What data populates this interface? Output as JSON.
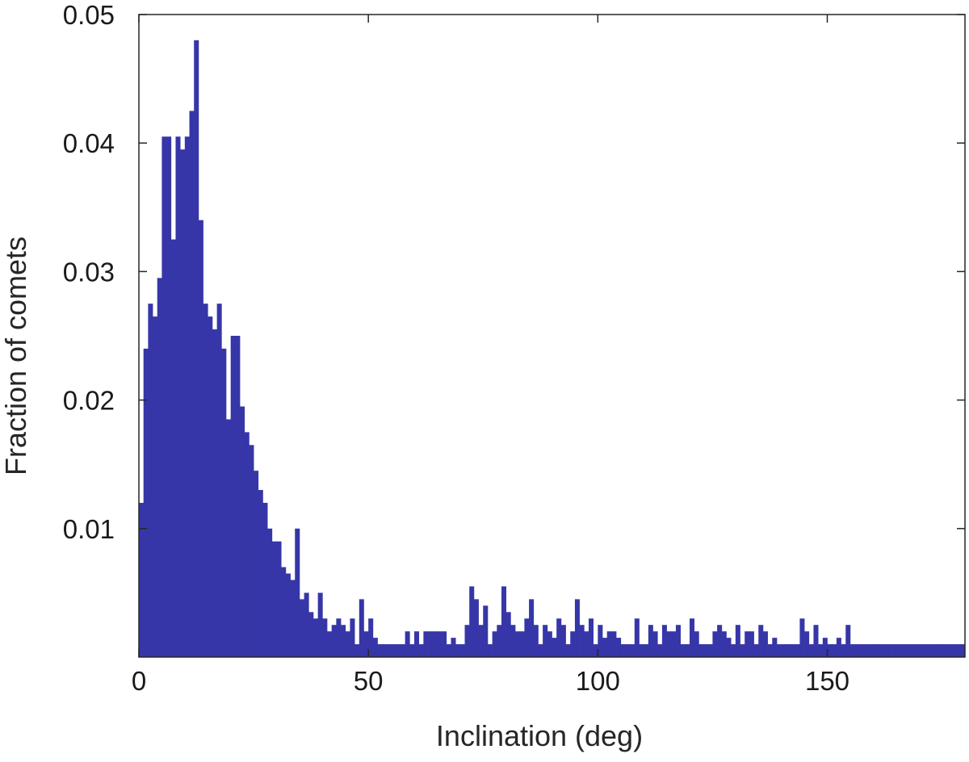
{
  "chart_data": {
    "type": "bar",
    "xlabel": "Inclination (deg)",
    "ylabel": "Fraction of comets",
    "xlim": [
      0,
      180
    ],
    "ylim": [
      0,
      0.05
    ],
    "xticks": [
      0,
      50,
      100,
      150
    ],
    "xtick_labels": [
      "0",
      "50",
      "100",
      "150"
    ],
    "yticks": [
      0.01,
      0.02,
      0.03,
      0.04,
      0.05
    ],
    "ytick_labels": [
      "0.01",
      "0.02",
      "0.03",
      "0.04",
      "0.05"
    ],
    "grid": false,
    "bar_color": "#3636a8",
    "bin_width": 1,
    "values": [
      0.012,
      0.024,
      0.0275,
      0.0265,
      0.0295,
      0.0405,
      0.0405,
      0.0325,
      0.0405,
      0.0395,
      0.0405,
      0.0425,
      0.048,
      0.034,
      0.0275,
      0.0265,
      0.0255,
      0.0275,
      0.024,
      0.0185,
      0.025,
      0.025,
      0.0195,
      0.0175,
      0.0165,
      0.0145,
      0.013,
      0.012,
      0.01,
      0.009,
      0.009,
      0.007,
      0.0065,
      0.006,
      0.01,
      0.0045,
      0.005,
      0.0035,
      0.003,
      0.005,
      0.003,
      0.002,
      0.0025,
      0.003,
      0.0025,
      0.002,
      0.003,
      0.001,
      0.0045,
      0.002,
      0.003,
      0.0015,
      0.001,
      0.001,
      0.001,
      0.001,
      0.001,
      0.001,
      0.002,
      0.001,
      0.002,
      0.001,
      0.002,
      0.002,
      0.002,
      0.002,
      0.002,
      0.001,
      0.0015,
      0.001,
      0.001,
      0.0025,
      0.0055,
      0.0045,
      0.0025,
      0.004,
      0.001,
      0.002,
      0.0025,
      0.0055,
      0.0035,
      0.0025,
      0.002,
      0.002,
      0.003,
      0.0045,
      0.0025,
      0.001,
      0.0025,
      0.002,
      0.0015,
      0.003,
      0.0025,
      0.001,
      0.002,
      0.0045,
      0.0025,
      0.002,
      0.003,
      0.001,
      0.0025,
      0.0015,
      0.002,
      0.002,
      0.0015,
      0.001,
      0.001,
      0.001,
      0.003,
      0.001,
      0.001,
      0.0025,
      0.002,
      0.001,
      0.0025,
      0.002,
      0.002,
      0.0025,
      0.001,
      0.001,
      0.003,
      0.002,
      0.001,
      0.001,
      0.001,
      0.002,
      0.0025,
      0.002,
      0.0015,
      0.001,
      0.0025,
      0.001,
      0.002,
      0.002,
      0.001,
      0.0025,
      0.002,
      0.001,
      0.0015,
      0.001,
      0.001,
      0.001,
      0.001,
      0.001,
      0.003,
      0.002,
      0.001,
      0.0025,
      0.001,
      0.0015,
      0.001,
      0.001,
      0.0015,
      0.001,
      0.0025,
      0.001,
      0.001,
      0.001,
      0.001,
      0.001,
      0.001,
      0.001,
      0.001,
      0.001,
      0.001,
      0.001,
      0.001,
      0.001,
      0.001,
      0.001,
      0.001,
      0.001,
      0.001,
      0.001,
      0.001,
      0.001,
      0.001,
      0.001,
      0.001,
      0.001
    ]
  }
}
